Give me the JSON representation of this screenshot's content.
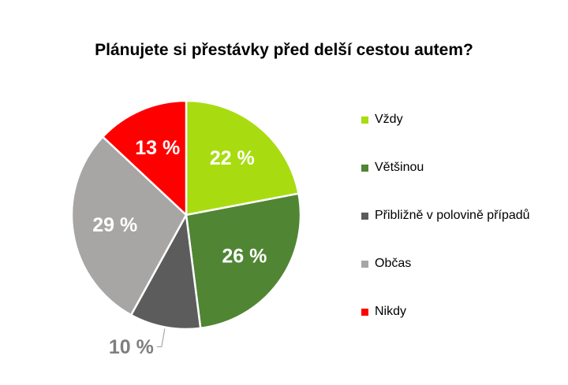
{
  "chart_data": {
    "type": "pie",
    "title": "Plánujete si přestávky před delší cestou autem?",
    "legend_position": "right",
    "slices": [
      {
        "label": "Vždy",
        "value": 22,
        "display": "22 %",
        "color": "#a8dc10"
      },
      {
        "label": "Většinou",
        "value": 26,
        "display": "26 %",
        "color": "#508534"
      },
      {
        "label": "Přibližně v polovině případů",
        "value": 10,
        "display": "10 %",
        "color": "#5c5c5c"
      },
      {
        "label": "Občas",
        "value": 29,
        "display": "29 %",
        "color": "#a8a5a5"
      },
      {
        "label": "Nikdy",
        "value": 13,
        "display": "13 %",
        "color": "#ff0000"
      }
    ]
  }
}
